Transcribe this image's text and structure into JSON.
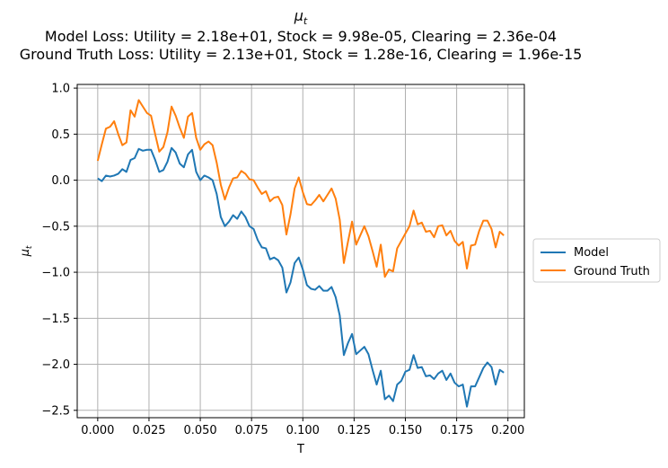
{
  "chart_data": {
    "type": "line",
    "title_symbol": "μ",
    "title_symbol_sub": "t",
    "title_line2": "Model Loss: Utility = 2.18e+01, Stock = 9.98e-05, Clearing = 2.36e-04",
    "title_line3": "Ground Truth Loss: Utility = 2.13e+01, Stock = 1.28e-16, Clearing = 1.96e-15",
    "xlabel": "T",
    "ylabel_symbol": "μ",
    "ylabel_sub": "t",
    "xlim": [
      -0.01,
      0.208
    ],
    "ylim": [
      -2.58,
      1.04
    ],
    "xticks": [
      0.0,
      0.025,
      0.05,
      0.075,
      0.1,
      0.125,
      0.15,
      0.175,
      0.2
    ],
    "xtick_labels": [
      "0.000",
      "0.025",
      "0.050",
      "0.075",
      "0.100",
      "0.125",
      "0.150",
      "0.175",
      "0.200"
    ],
    "yticks": [
      1.0,
      0.5,
      0.0,
      -0.5,
      -1.0,
      -1.5,
      -2.0,
      -2.5
    ],
    "ytick_labels": [
      "1.0",
      "0.5",
      "0.0",
      "−0.5",
      "−1.0",
      "−1.5",
      "−2.0",
      "−2.5"
    ],
    "grid": true,
    "legend_position": "outside right, middle",
    "series": [
      {
        "name": "Model",
        "color": "#1f77b4",
        "x": [
          0.0,
          0.002,
          0.004,
          0.006,
          0.008,
          0.01,
          0.012,
          0.014,
          0.016,
          0.018,
          0.02,
          0.022,
          0.024,
          0.026,
          0.028,
          0.03,
          0.032,
          0.034,
          0.036,
          0.038,
          0.04,
          0.042,
          0.044,
          0.046,
          0.048,
          0.05,
          0.052,
          0.054,
          0.056,
          0.058,
          0.06,
          0.062,
          0.064,
          0.066,
          0.068,
          0.07,
          0.072,
          0.074,
          0.076,
          0.078,
          0.08,
          0.082,
          0.084,
          0.086,
          0.088,
          0.09,
          0.092,
          0.094,
          0.096,
          0.098,
          0.1,
          0.102,
          0.104,
          0.106,
          0.108,
          0.11,
          0.112,
          0.114,
          0.116,
          0.118,
          0.12,
          0.122,
          0.124,
          0.126,
          0.128,
          0.13,
          0.132,
          0.134,
          0.136,
          0.138,
          0.14,
          0.142,
          0.144,
          0.146,
          0.148,
          0.15,
          0.152,
          0.154,
          0.156,
          0.158,
          0.16,
          0.162,
          0.164,
          0.166,
          0.168,
          0.17,
          0.172,
          0.174,
          0.176,
          0.178,
          0.18,
          0.182,
          0.184,
          0.186,
          0.188,
          0.19,
          0.192,
          0.194,
          0.196,
          0.198
        ],
        "values": [
          0.02,
          -0.01,
          0.05,
          0.04,
          0.05,
          0.07,
          0.12,
          0.09,
          0.22,
          0.24,
          0.34,
          0.32,
          0.33,
          0.33,
          0.22,
          0.09,
          0.11,
          0.2,
          0.35,
          0.3,
          0.18,
          0.14,
          0.28,
          0.33,
          0.09,
          0.0,
          0.05,
          0.03,
          0.0,
          -0.15,
          -0.4,
          -0.5,
          -0.45,
          -0.38,
          -0.42,
          -0.34,
          -0.4,
          -0.5,
          -0.53,
          -0.65,
          -0.73,
          -0.74,
          -0.86,
          -0.84,
          -0.87,
          -0.95,
          -1.22,
          -1.11,
          -0.9,
          -0.84,
          -0.97,
          -1.14,
          -1.18,
          -1.19,
          -1.15,
          -1.2,
          -1.2,
          -1.16,
          -1.27,
          -1.47,
          -1.9,
          -1.77,
          -1.67,
          -1.89,
          -1.85,
          -1.81,
          -1.89,
          -2.06,
          -2.22,
          -2.07,
          -2.38,
          -2.34,
          -2.4,
          -2.22,
          -2.18,
          -2.08,
          -2.06,
          -1.9,
          -2.04,
          -2.03,
          -2.13,
          -2.12,
          -2.16,
          -2.1,
          -2.07,
          -2.17,
          -2.1,
          -2.2,
          -2.24,
          -2.22,
          -2.46,
          -2.24,
          -2.24,
          -2.14,
          -2.04,
          -1.98,
          -2.03,
          -2.22,
          -2.06,
          -2.09
        ]
      },
      {
        "name": "Ground Truth",
        "color": "#ff7f0e",
        "x": [
          0.0,
          0.002,
          0.004,
          0.006,
          0.008,
          0.01,
          0.012,
          0.014,
          0.016,
          0.018,
          0.02,
          0.022,
          0.024,
          0.026,
          0.028,
          0.03,
          0.032,
          0.034,
          0.036,
          0.038,
          0.04,
          0.042,
          0.044,
          0.046,
          0.048,
          0.05,
          0.052,
          0.054,
          0.056,
          0.058,
          0.06,
          0.062,
          0.064,
          0.066,
          0.068,
          0.07,
          0.072,
          0.074,
          0.076,
          0.078,
          0.08,
          0.082,
          0.084,
          0.086,
          0.088,
          0.09,
          0.092,
          0.094,
          0.096,
          0.098,
          0.1,
          0.102,
          0.104,
          0.106,
          0.108,
          0.11,
          0.112,
          0.114,
          0.116,
          0.118,
          0.12,
          0.122,
          0.124,
          0.126,
          0.128,
          0.13,
          0.132,
          0.134,
          0.136,
          0.138,
          0.14,
          0.142,
          0.144,
          0.146,
          0.148,
          0.15,
          0.152,
          0.154,
          0.156,
          0.158,
          0.16,
          0.162,
          0.164,
          0.166,
          0.168,
          0.17,
          0.172,
          0.174,
          0.176,
          0.178,
          0.18,
          0.182,
          0.184,
          0.186,
          0.188,
          0.19,
          0.192,
          0.194,
          0.196,
          0.198
        ],
        "values": [
          0.21,
          0.39,
          0.56,
          0.58,
          0.64,
          0.5,
          0.38,
          0.41,
          0.76,
          0.69,
          0.87,
          0.8,
          0.73,
          0.7,
          0.5,
          0.31,
          0.36,
          0.52,
          0.8,
          0.7,
          0.57,
          0.46,
          0.69,
          0.73,
          0.46,
          0.33,
          0.39,
          0.42,
          0.38,
          0.19,
          -0.05,
          -0.21,
          -0.08,
          0.02,
          0.03,
          0.1,
          0.07,
          0.01,
          0.0,
          -0.08,
          -0.15,
          -0.12,
          -0.23,
          -0.19,
          -0.18,
          -0.27,
          -0.59,
          -0.37,
          -0.09,
          0.03,
          -0.13,
          -0.26,
          -0.27,
          -0.22,
          -0.16,
          -0.23,
          -0.16,
          -0.09,
          -0.2,
          -0.43,
          -0.9,
          -0.67,
          -0.45,
          -0.7,
          -0.6,
          -0.5,
          -0.61,
          -0.77,
          -0.94,
          -0.7,
          -1.05,
          -0.97,
          -0.99,
          -0.74,
          -0.66,
          -0.58,
          -0.5,
          -0.33,
          -0.48,
          -0.46,
          -0.56,
          -0.55,
          -0.62,
          -0.5,
          -0.49,
          -0.6,
          -0.55,
          -0.66,
          -0.71,
          -0.67,
          -0.96,
          -0.71,
          -0.7,
          -0.55,
          -0.44,
          -0.44,
          -0.53,
          -0.73,
          -0.56,
          -0.6
        ]
      }
    ]
  }
}
